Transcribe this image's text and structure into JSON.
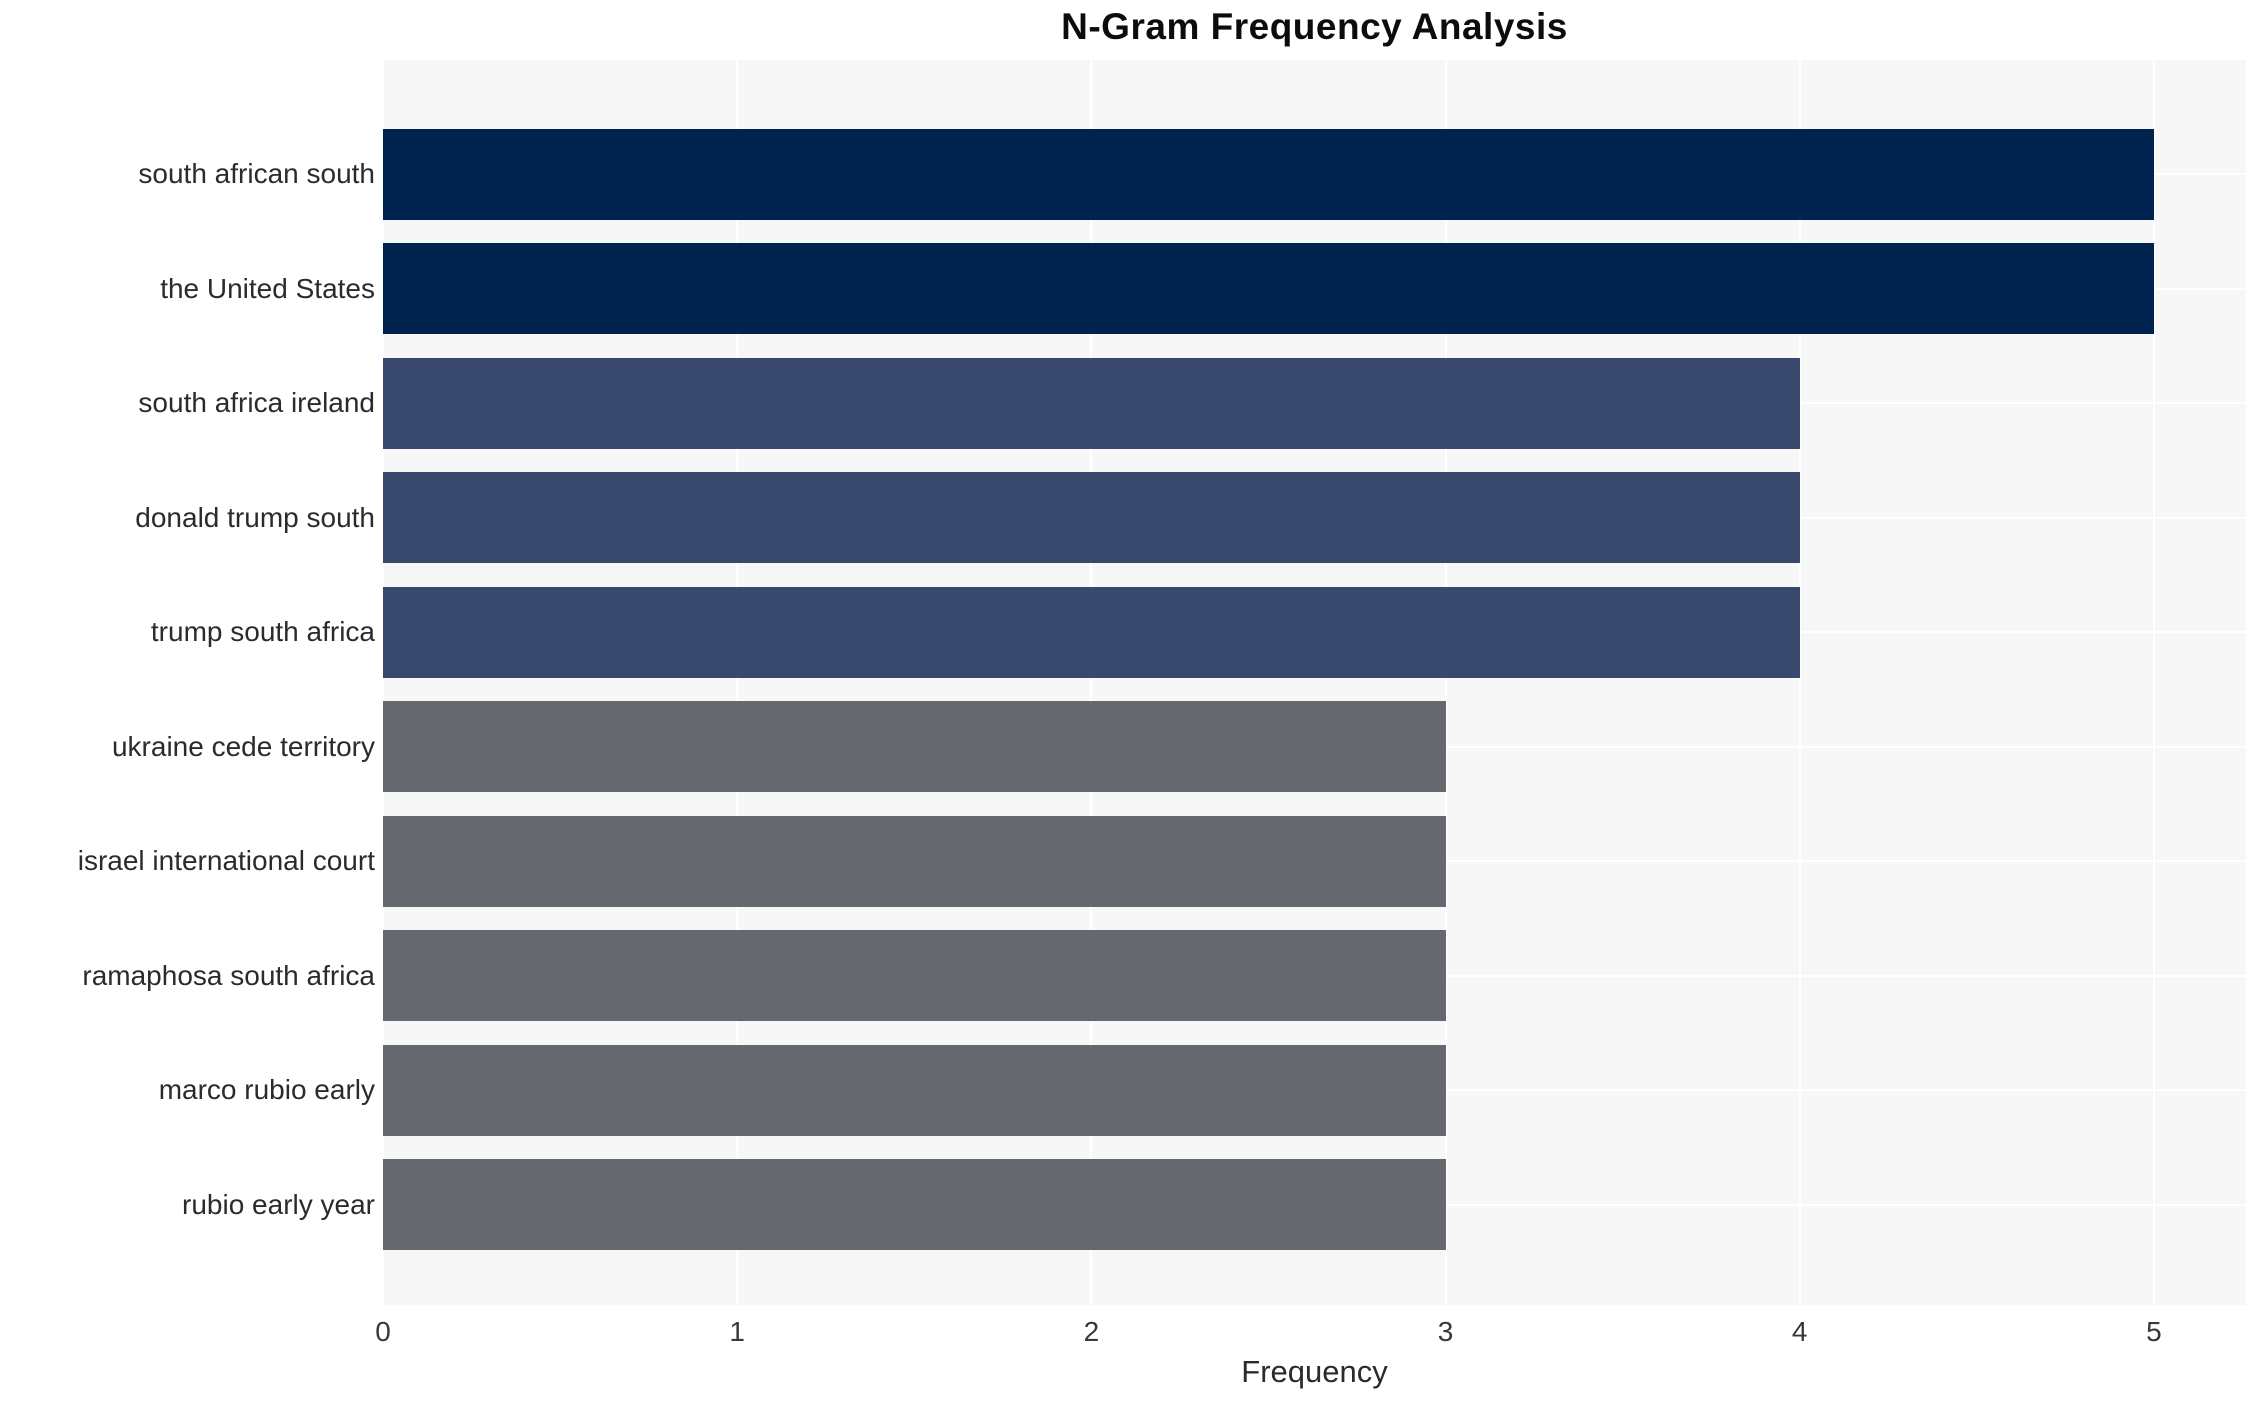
{
  "figure": {
    "background": "#ffffff",
    "plot_background": "#f7f7f8",
    "gridline_color": "#ffffff",
    "text_color": "#2b2b2b"
  },
  "chart_data": {
    "type": "bar",
    "orientation": "horizontal",
    "title": "N-Gram Frequency Analysis",
    "xlabel": "Frequency",
    "ylabel": "",
    "grid": true,
    "legend": false,
    "xlim": [
      0,
      5.26
    ],
    "xticks": [
      0,
      1,
      2,
      3,
      4,
      5
    ],
    "xtick_labels": [
      "0",
      "1",
      "2",
      "3",
      "4",
      "5"
    ],
    "categories": [
      "south african south",
      "the United States",
      "south africa ireland",
      "donald trump south",
      "trump south africa",
      "ukraine cede territory",
      "israel international court",
      "ramaphosa south africa",
      "marco rubio early",
      "rubio early year"
    ],
    "values": [
      5,
      5,
      4,
      4,
      4,
      3,
      3,
      3,
      3,
      3
    ],
    "bar_colors": [
      "#00224e",
      "#00224e",
      "#39496e",
      "#39496e",
      "#39496e",
      "#65686f",
      "#65686f",
      "#65686f",
      "#65686f",
      "#65686f"
    ]
  }
}
